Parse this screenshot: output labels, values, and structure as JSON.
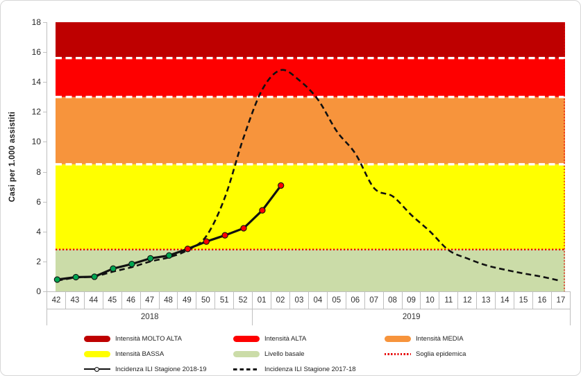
{
  "chart_data": {
    "type": "line",
    "title": "",
    "y_title": "Casi per 1.000 assistiti",
    "ylim": [
      0,
      18
    ],
    "y_ticks": [
      "0",
      "2",
      "4",
      "6",
      "8",
      "10",
      "12",
      "14",
      "16",
      "18"
    ],
    "x_weeks": [
      "42",
      "43",
      "44",
      "45",
      "46",
      "47",
      "48",
      "49",
      "50",
      "51",
      "52",
      "01",
      "02",
      "03",
      "04",
      "05",
      "06",
      "07",
      "08",
      "09",
      "10",
      "11",
      "12",
      "13",
      "14",
      "15",
      "16",
      "17"
    ],
    "x_year_groups": [
      {
        "label": "2018",
        "weeks": 11
      },
      {
        "label": "2019",
        "weeks": 17
      }
    ],
    "grid": false,
    "bands": [
      {
        "label": "Livello basale",
        "from": 0,
        "to": 2.8,
        "color": "#CBDCA8"
      },
      {
        "label": "Intensità BASSA",
        "from": 2.8,
        "to": 8.5,
        "color": "#FFFF00"
      },
      {
        "label": "Intensità MEDIA",
        "from": 8.5,
        "to": 13,
        "color": "#F7943C"
      },
      {
        "label": "Intensità ALTA",
        "from": 13,
        "to": 15.6,
        "color": "#FE0000"
      },
      {
        "label": "Intensità MOLTO ALTA",
        "from": 15.6,
        "to": 18,
        "color": "#BE0000"
      }
    ],
    "band_boundaries": [
      8.5,
      13,
      15.6
    ],
    "threshold": {
      "label": "Soglia epidemica",
      "value": 2.8,
      "color": "#E60000"
    },
    "series": [
      {
        "name": "Incidenza ILI Stagione 2018-19",
        "line": "solid",
        "color": "#111111",
        "marker_below_threshold_color": "#00A550",
        "marker_above_threshold_color": "#FF0000",
        "values": [
          0.79,
          0.95,
          0.98,
          1.52,
          1.83,
          2.21,
          2.4,
          2.84,
          3.33,
          3.75,
          4.22,
          5.42,
          7.08
        ]
      },
      {
        "name": "Incidenza ILI Stagione 2017-18",
        "line": "dashed",
        "color": "#111111",
        "values": [
          0.72,
          0.92,
          1.0,
          1.32,
          1.62,
          2.0,
          2.28,
          2.76,
          3.7,
          6.3,
          10.3,
          13.5,
          14.8,
          14.1,
          12.8,
          10.7,
          9.2,
          6.9,
          6.35,
          5.1,
          4.0,
          2.75,
          2.2,
          1.75,
          1.45,
          1.2,
          0.98,
          0.7
        ]
      }
    ],
    "legend": [
      {
        "type": "band",
        "color": "#BE0000",
        "label": "Intensità MOLTO ALTA"
      },
      {
        "type": "band",
        "color": "#FE0000",
        "label": "Intensità ALTA"
      },
      {
        "type": "band",
        "color": "#F7943C",
        "label": "Intensità MEDIA"
      },
      {
        "type": "band",
        "color": "#FFFF00",
        "label": "Intensità BASSA"
      },
      {
        "type": "band",
        "color": "#CBDCA8",
        "label": "Livello basale"
      },
      {
        "type": "threshold",
        "color": "#E60000",
        "label": "Soglia epidemica"
      },
      {
        "type": "line",
        "color": "#111111",
        "label": "Incidenza ILI Stagione 2018-19"
      },
      {
        "type": "dashed",
        "color": "#111111",
        "label": "Incidenza ILI Stagione 2017-18"
      }
    ]
  }
}
